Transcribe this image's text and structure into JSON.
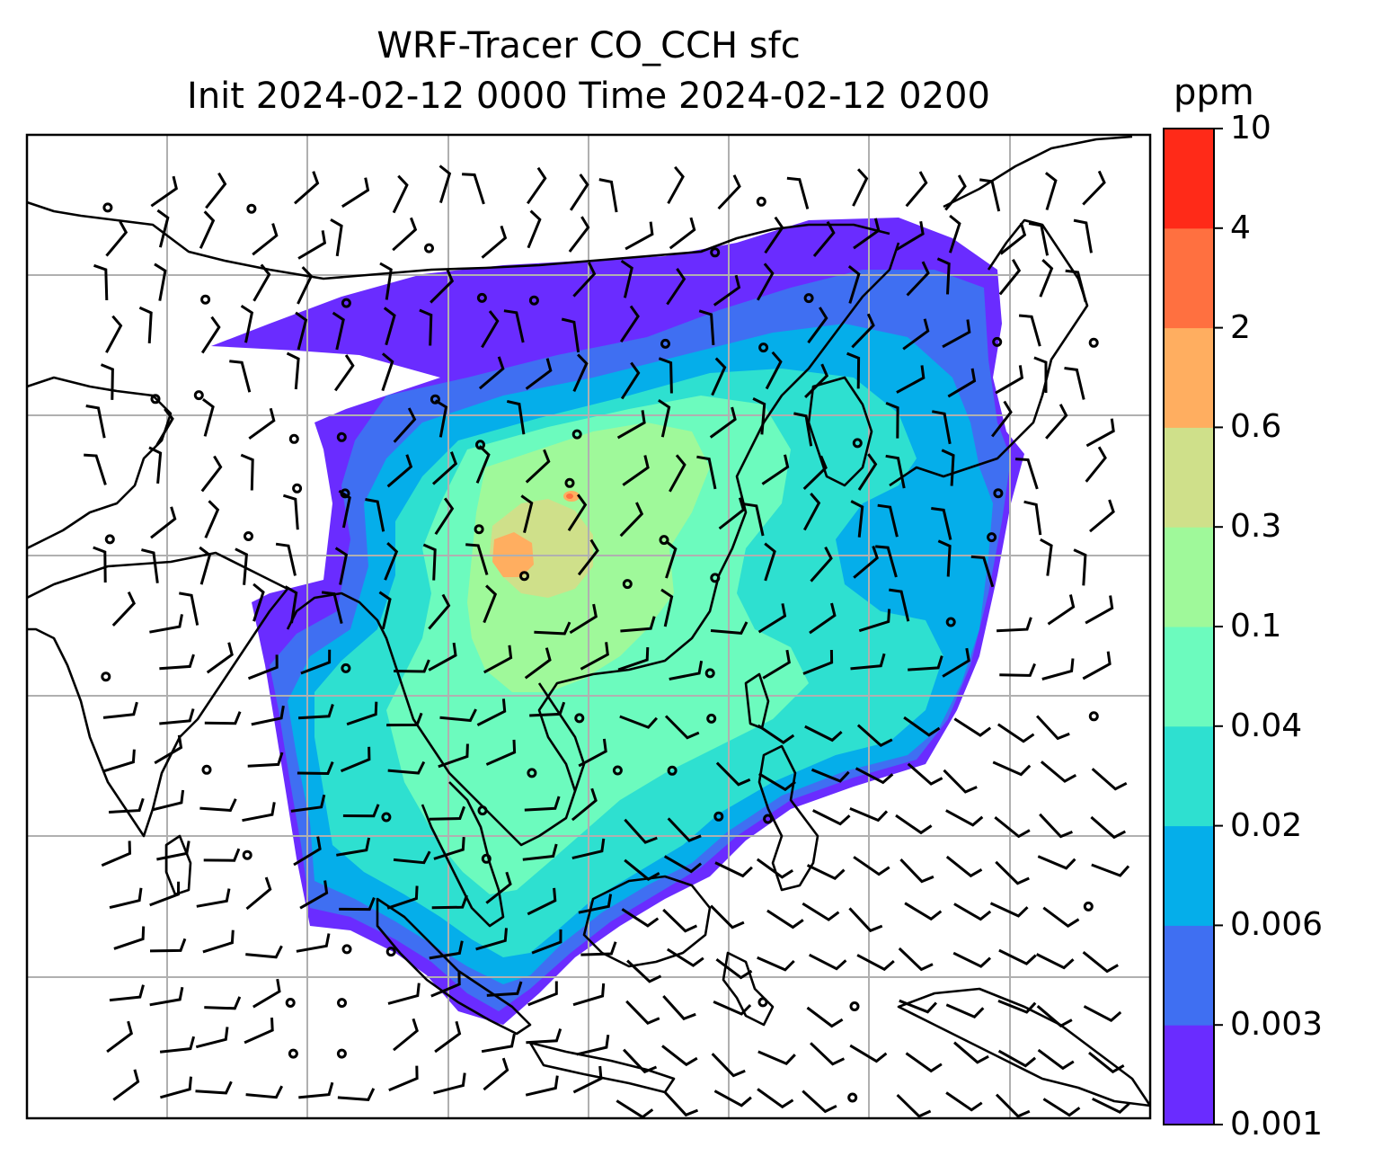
{
  "title": {
    "line1": "WRF-Tracer CO_CCH sfc",
    "line2": "Init 2024-02-12 0000 Time 2024-02-12 0200"
  },
  "colorbar": {
    "units": "ppm",
    "ticks": [
      "0.001",
      "0.003",
      "0.006",
      "0.02",
      "0.04",
      "0.1",
      "0.3",
      "0.6",
      "2",
      "4",
      "10"
    ],
    "colors": [
      "#6a2cff",
      "#3f6ff2",
      "#05aeea",
      "#2ee0d0",
      "#6cfbbe",
      "#9ff99a",
      "#cfe08a",
      "#ffae60",
      "#ff7040",
      "#ff2a18"
    ]
  },
  "map": {
    "graticule": "gray-gridlines",
    "coastline_color": "#000000",
    "wind_barbs": "black"
  }
}
